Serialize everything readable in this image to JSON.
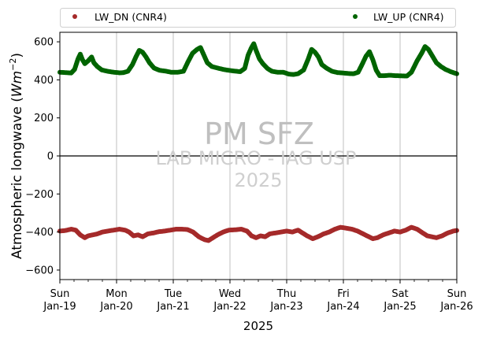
{
  "chart_data": {
    "type": "scatter",
    "xlabel": "2025",
    "ylabel_prefix": "Atmospheric longwave (",
    "ylabel_unit": "Wm",
    "ylabel_sup": "−2",
    "ylabel_suffix": ")",
    "xlim": [
      0,
      7
    ],
    "ylim": [
      -650,
      650
    ],
    "yticks": [
      -600,
      -400,
      -200,
      0,
      200,
      400,
      600
    ],
    "ytick_labels": [
      "−600",
      "−400",
      "−200",
      "0",
      "200",
      "400",
      "600"
    ],
    "xticks": [
      {
        "x": 0,
        "day": "Sun",
        "date": "Jan-19"
      },
      {
        "x": 1,
        "day": "Mon",
        "date": "Jan-20"
      },
      {
        "x": 2,
        "day": "Tue",
        "date": "Jan-21"
      },
      {
        "x": 3,
        "day": "Wed",
        "date": "Jan-22"
      },
      {
        "x": 4,
        "day": "Thu",
        "date": "Jan-23"
      },
      {
        "x": 5,
        "day": "Fri",
        "date": "Jan-24"
      },
      {
        "x": 6,
        "day": "Sat",
        "date": "Jan-25"
      },
      {
        "x": 7,
        "day": "Sun",
        "date": "Jan-26"
      }
    ],
    "grid": "vertical",
    "zero_line": true,
    "legend_placement": "top, outside plot",
    "series": [
      {
        "name": "LW_DN (CNR4)",
        "color": "#a52a2a",
        "points": [
          [
            0.0,
            -395
          ],
          [
            0.1,
            -392
          ],
          [
            0.2,
            -385
          ],
          [
            0.28,
            -390
          ],
          [
            0.36,
            -415
          ],
          [
            0.44,
            -430
          ],
          [
            0.5,
            -420
          ],
          [
            0.58,
            -415
          ],
          [
            0.66,
            -410
          ],
          [
            0.75,
            -400
          ],
          [
            0.85,
            -395
          ],
          [
            0.95,
            -390
          ],
          [
            1.05,
            -385
          ],
          [
            1.15,
            -390
          ],
          [
            1.22,
            -400
          ],
          [
            1.3,
            -420
          ],
          [
            1.38,
            -415
          ],
          [
            1.46,
            -425
          ],
          [
            1.55,
            -410
          ],
          [
            1.65,
            -405
          ],
          [
            1.75,
            -398
          ],
          [
            1.85,
            -395
          ],
          [
            1.95,
            -390
          ],
          [
            2.05,
            -385
          ],
          [
            2.15,
            -385
          ],
          [
            2.25,
            -387
          ],
          [
            2.35,
            -400
          ],
          [
            2.45,
            -425
          ],
          [
            2.55,
            -440
          ],
          [
            2.62,
            -445
          ],
          [
            2.7,
            -430
          ],
          [
            2.78,
            -415
          ],
          [
            2.88,
            -400
          ],
          [
            2.98,
            -390
          ],
          [
            3.1,
            -388
          ],
          [
            3.2,
            -385
          ],
          [
            3.3,
            -395
          ],
          [
            3.38,
            -420
          ],
          [
            3.46,
            -430
          ],
          [
            3.54,
            -420
          ],
          [
            3.62,
            -425
          ],
          [
            3.7,
            -410
          ],
          [
            3.8,
            -405
          ],
          [
            3.9,
            -400
          ],
          [
            4.0,
            -395
          ],
          [
            4.1,
            -400
          ],
          [
            4.2,
            -390
          ],
          [
            4.28,
            -405
          ],
          [
            4.36,
            -420
          ],
          [
            4.46,
            -435
          ],
          [
            4.55,
            -425
          ],
          [
            4.65,
            -410
          ],
          [
            4.75,
            -400
          ],
          [
            4.85,
            -385
          ],
          [
            4.95,
            -375
          ],
          [
            5.05,
            -380
          ],
          [
            5.15,
            -385
          ],
          [
            5.25,
            -395
          ],
          [
            5.35,
            -410
          ],
          [
            5.45,
            -425
          ],
          [
            5.52,
            -435
          ],
          [
            5.6,
            -430
          ],
          [
            5.7,
            -415
          ],
          [
            5.8,
            -405
          ],
          [
            5.9,
            -395
          ],
          [
            6.0,
            -400
          ],
          [
            6.1,
            -390
          ],
          [
            6.2,
            -375
          ],
          [
            6.3,
            -385
          ],
          [
            6.4,
            -405
          ],
          [
            6.48,
            -420
          ],
          [
            6.56,
            -425
          ],
          [
            6.64,
            -430
          ],
          [
            6.74,
            -420
          ],
          [
            6.84,
            -405
          ],
          [
            6.94,
            -395
          ],
          [
            7.0,
            -392
          ]
        ]
      },
      {
        "name": "LW_UP (CNR4)",
        "color": "#006400",
        "points": [
          [
            0.0,
            440
          ],
          [
            0.1,
            438
          ],
          [
            0.2,
            436
          ],
          [
            0.26,
            455
          ],
          [
            0.32,
            510
          ],
          [
            0.36,
            535
          ],
          [
            0.4,
            505
          ],
          [
            0.44,
            485
          ],
          [
            0.5,
            500
          ],
          [
            0.56,
            520
          ],
          [
            0.6,
            490
          ],
          [
            0.66,
            470
          ],
          [
            0.74,
            452
          ],
          [
            0.84,
            445
          ],
          [
            0.95,
            440
          ],
          [
            1.05,
            437
          ],
          [
            1.12,
            438
          ],
          [
            1.2,
            445
          ],
          [
            1.28,
            480
          ],
          [
            1.34,
            520
          ],
          [
            1.4,
            555
          ],
          [
            1.46,
            545
          ],
          [
            1.52,
            520
          ],
          [
            1.58,
            490
          ],
          [
            1.66,
            462
          ],
          [
            1.76,
            450
          ],
          [
            1.86,
            446
          ],
          [
            1.96,
            440
          ],
          [
            2.08,
            440
          ],
          [
            2.18,
            445
          ],
          [
            2.26,
            495
          ],
          [
            2.34,
            540
          ],
          [
            2.42,
            560
          ],
          [
            2.48,
            570
          ],
          [
            2.54,
            530
          ],
          [
            2.6,
            490
          ],
          [
            2.68,
            470
          ],
          [
            2.78,
            462
          ],
          [
            2.88,
            455
          ],
          [
            2.98,
            450
          ],
          [
            3.08,
            446
          ],
          [
            3.18,
            443
          ],
          [
            3.26,
            460
          ],
          [
            3.32,
            530
          ],
          [
            3.38,
            570
          ],
          [
            3.42,
            590
          ],
          [
            3.46,
            555
          ],
          [
            3.52,
            510
          ],
          [
            3.58,
            485
          ],
          [
            3.66,
            460
          ],
          [
            3.74,
            445
          ],
          [
            3.84,
            440
          ],
          [
            3.94,
            440
          ],
          [
            4.04,
            430
          ],
          [
            4.12,
            428
          ],
          [
            4.2,
            432
          ],
          [
            4.3,
            452
          ],
          [
            4.38,
            510
          ],
          [
            4.44,
            560
          ],
          [
            4.5,
            545
          ],
          [
            4.56,
            520
          ],
          [
            4.62,
            480
          ],
          [
            4.7,
            462
          ],
          [
            4.8,
            445
          ],
          [
            4.9,
            438
          ],
          [
            5.0,
            436
          ],
          [
            5.1,
            433
          ],
          [
            5.18,
            432
          ],
          [
            5.26,
            440
          ],
          [
            5.32,
            475
          ],
          [
            5.4,
            525
          ],
          [
            5.46,
            548
          ],
          [
            5.52,
            505
          ],
          [
            5.58,
            450
          ],
          [
            5.64,
            422
          ],
          [
            5.72,
            422
          ],
          [
            5.82,
            424
          ],
          [
            5.92,
            422
          ],
          [
            6.02,
            421
          ],
          [
            6.12,
            420
          ],
          [
            6.2,
            440
          ],
          [
            6.3,
            500
          ],
          [
            6.38,
            540
          ],
          [
            6.44,
            575
          ],
          [
            6.5,
            560
          ],
          [
            6.56,
            530
          ],
          [
            6.64,
            490
          ],
          [
            6.72,
            470
          ],
          [
            6.8,
            455
          ],
          [
            6.9,
            442
          ],
          [
            7.0,
            432
          ]
        ]
      }
    ]
  },
  "watermark": {
    "line1": "PM SFZ",
    "line2": "LAB MICRO - IAG USP",
    "line3": "2025"
  }
}
